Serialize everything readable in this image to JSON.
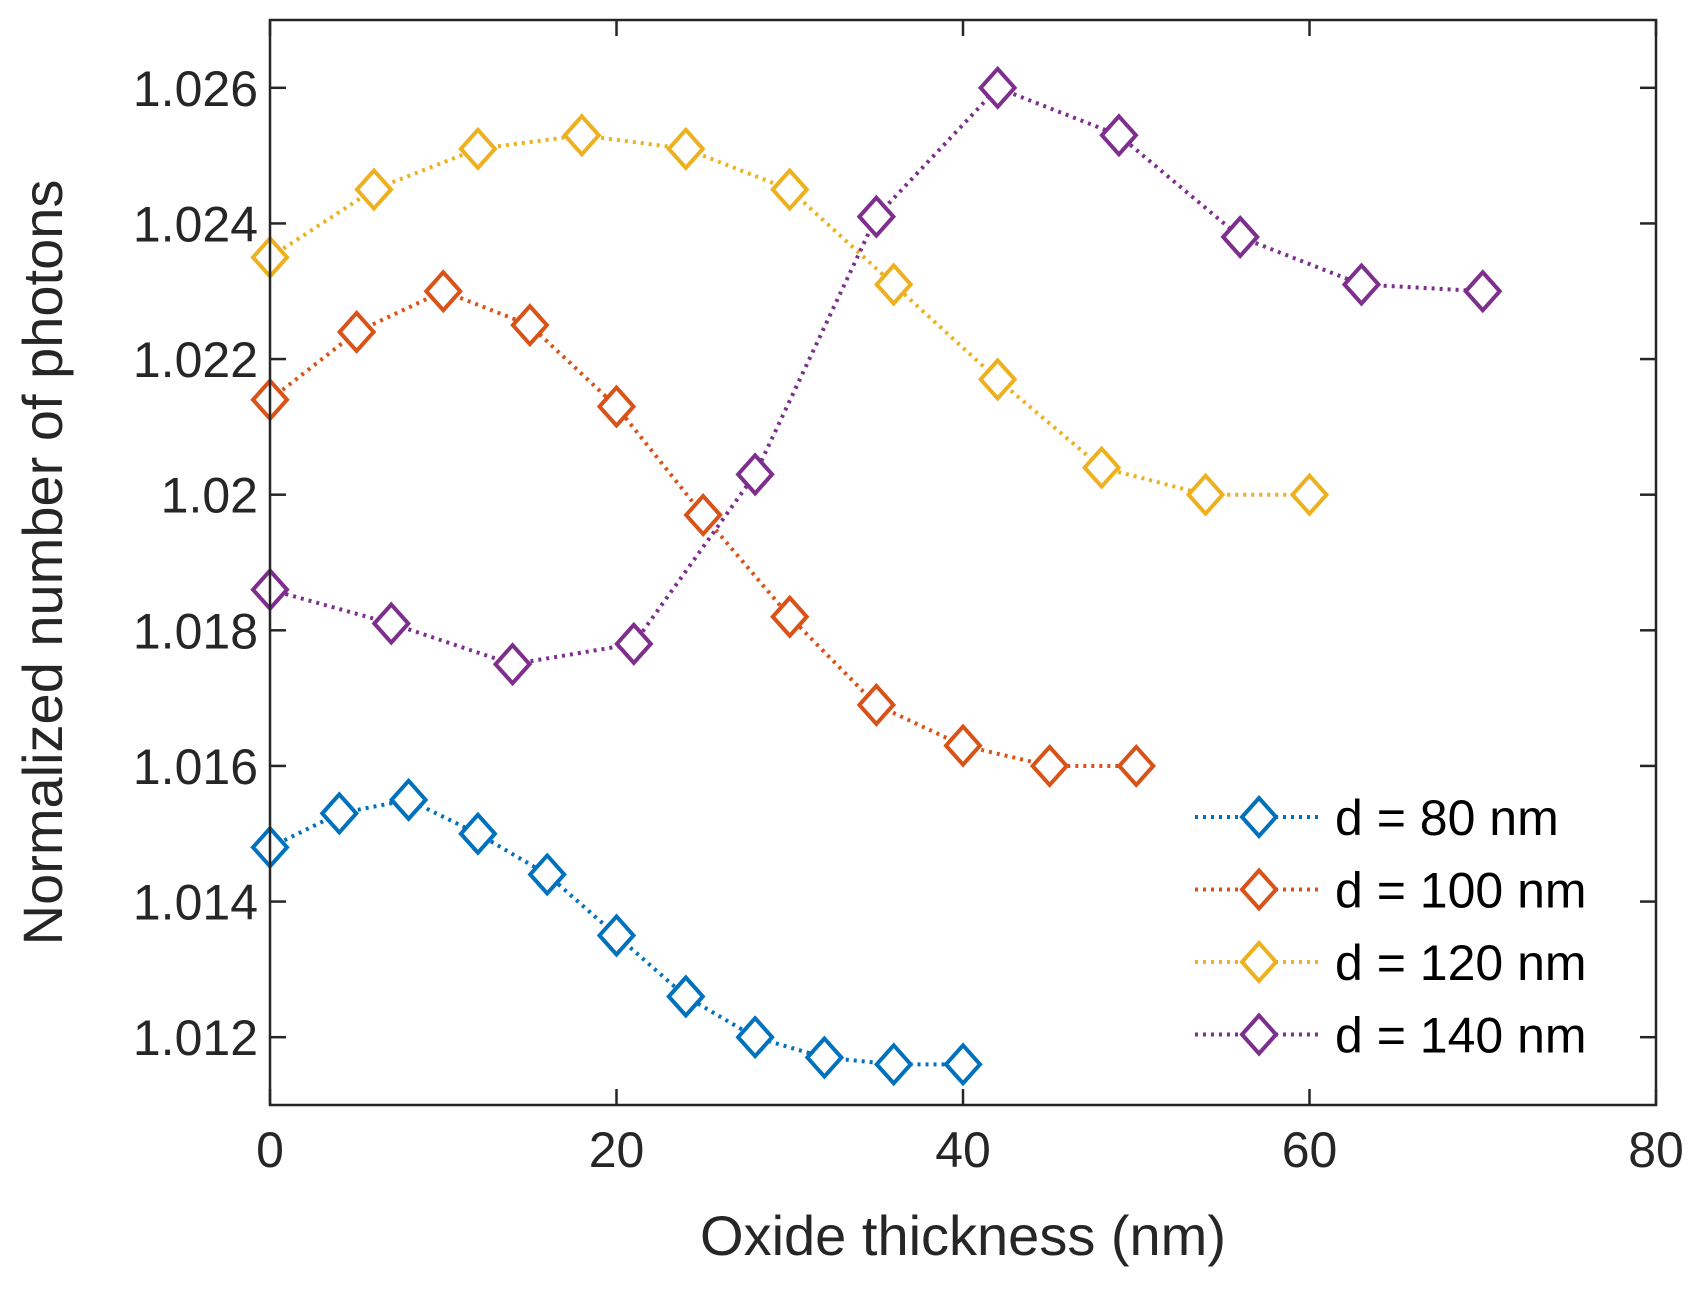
{
  "chart_data": {
    "type": "line",
    "title": "",
    "xlabel": "Oxide thickness (nm)",
    "ylabel": "Normalized number of photons",
    "xlim": [
      0,
      80
    ],
    "ylim": [
      1.011,
      1.027
    ],
    "xticks": [
      0,
      20,
      40,
      60,
      80
    ],
    "xtick_labels": [
      "0",
      "20",
      "40",
      "60",
      "80"
    ],
    "yticks": [
      1.012,
      1.014,
      1.016,
      1.018,
      1.02,
      1.022,
      1.024,
      1.026
    ],
    "ytick_labels": [
      "1.012",
      "1.014",
      "1.016",
      "1.018",
      "1.02",
      "1.022",
      "1.024",
      "1.026"
    ],
    "grid": false,
    "legend_position": "bottom-right",
    "marker": "diamond",
    "line_style": "dotted",
    "series": [
      {
        "name": "d = 80 nm",
        "color": "#0072BD",
        "x": [
          0,
          4,
          8,
          12,
          16,
          20,
          24,
          28,
          32,
          36,
          40
        ],
        "y": [
          1.0148,
          1.0153,
          1.0155,
          1.015,
          1.0144,
          1.0135,
          1.0126,
          1.012,
          1.0117,
          1.0116,
          1.0116
        ]
      },
      {
        "name": "d = 100 nm",
        "color": "#D95319",
        "x": [
          0,
          5,
          10,
          15,
          20,
          25,
          30,
          35,
          40,
          45,
          50
        ],
        "y": [
          1.0214,
          1.0224,
          1.023,
          1.0225,
          1.0213,
          1.0197,
          1.0182,
          1.0169,
          1.0163,
          1.016,
          1.016
        ]
      },
      {
        "name": "d = 120 nm",
        "color": "#EDB120",
        "x": [
          0,
          6,
          12,
          18,
          24,
          30,
          36,
          42,
          48,
          54,
          60
        ],
        "y": [
          1.0235,
          1.0245,
          1.0251,
          1.0253,
          1.0251,
          1.0245,
          1.0231,
          1.0217,
          1.0204,
          1.02,
          1.02
        ]
      },
      {
        "name": "d = 140 nm",
        "color": "#7E2F8E",
        "x": [
          0,
          7,
          14,
          21,
          28,
          35,
          42,
          49,
          56,
          63,
          70
        ],
        "y": [
          1.0186,
          1.0181,
          1.0175,
          1.0178,
          1.0203,
          1.0241,
          1.026,
          1.0253,
          1.0238,
          1.0231,
          1.023
        ]
      }
    ]
  }
}
